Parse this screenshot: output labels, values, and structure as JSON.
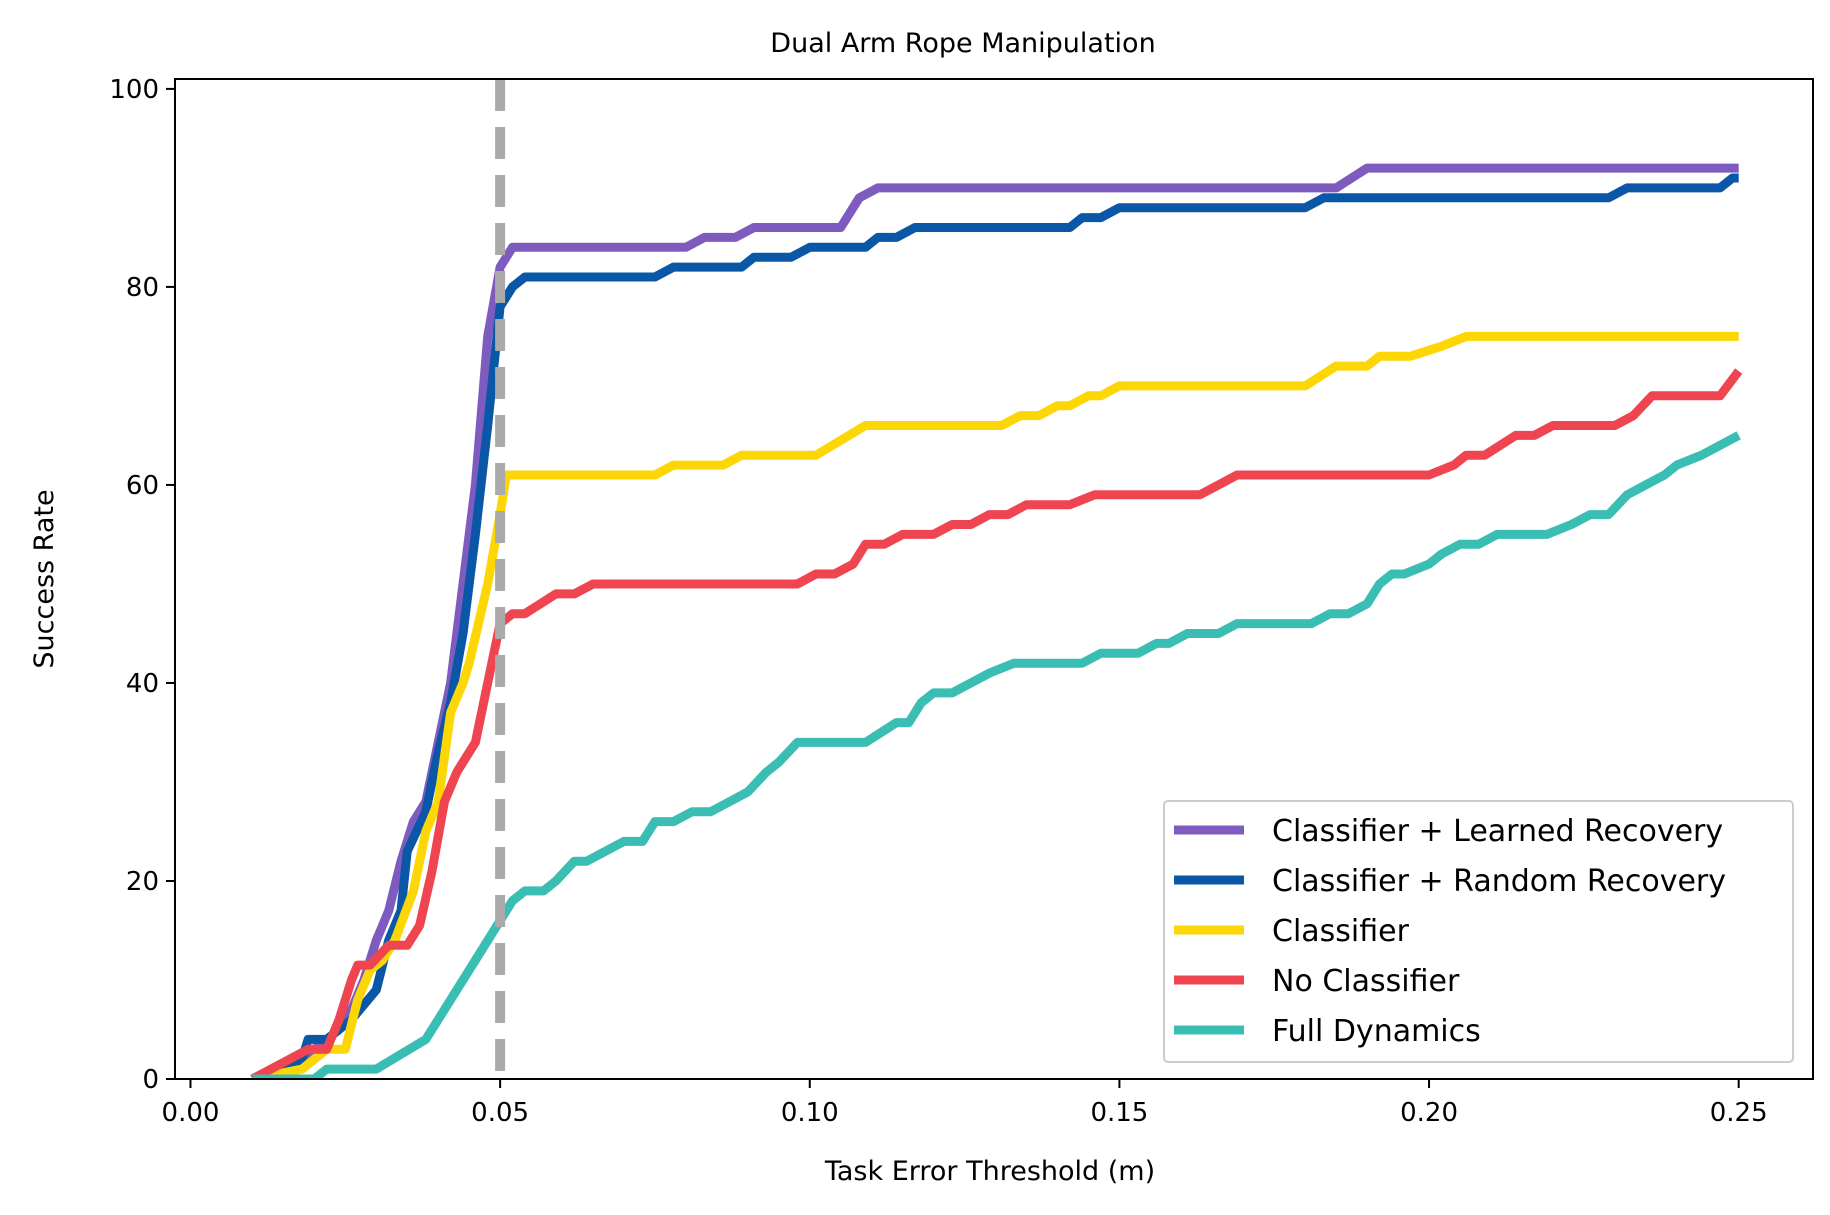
{
  "chart_data": {
    "type": "line",
    "title": "Dual Arm Rope Manipulation",
    "xlabel": "Task Error Threshold (m)",
    "ylabel": "Success Rate",
    "xlim": [
      -0.0025,
      0.262
    ],
    "ylim": [
      0,
      101
    ],
    "xticks": [
      0.0,
      0.05,
      0.1,
      0.15,
      0.2,
      0.25
    ],
    "xtick_labels": [
      "0.00",
      "0.05",
      "0.10",
      "0.15",
      "0.20",
      "0.25"
    ],
    "yticks": [
      0,
      20,
      40,
      60,
      80,
      100
    ],
    "ytick_labels": [
      "0",
      "20",
      "40",
      "60",
      "80",
      "100"
    ],
    "grid": false,
    "legend_position": "lower-right",
    "reference_line": {
      "x": 0.05,
      "color": "#aaaaaa",
      "style": "dashed"
    },
    "series": [
      {
        "name": "Classifier + Learned Recovery",
        "color": "#7e5cbf",
        "points": [
          [
            0.01,
            0
          ],
          [
            0.015,
            1
          ],
          [
            0.018,
            2
          ],
          [
            0.02,
            3
          ],
          [
            0.022,
            4
          ],
          [
            0.024,
            5
          ],
          [
            0.026,
            7
          ],
          [
            0.028,
            10
          ],
          [
            0.03,
            14
          ],
          [
            0.032,
            17
          ],
          [
            0.034,
            22
          ],
          [
            0.036,
            26
          ],
          [
            0.038,
            28
          ],
          [
            0.04,
            34
          ],
          [
            0.042,
            40
          ],
          [
            0.044,
            50
          ],
          [
            0.046,
            60
          ],
          [
            0.048,
            75
          ],
          [
            0.05,
            82
          ],
          [
            0.052,
            84
          ],
          [
            0.08,
            84
          ],
          [
            0.083,
            85
          ],
          [
            0.088,
            85
          ],
          [
            0.091,
            86
          ],
          [
            0.105,
            86
          ],
          [
            0.108,
            89
          ],
          [
            0.111,
            90
          ],
          [
            0.185,
            90
          ],
          [
            0.19,
            92
          ],
          [
            0.25,
            92
          ]
        ]
      },
      {
        "name": "Classifier + Random Recovery",
        "color": "#0a57a8",
        "points": [
          [
            0.01,
            0
          ],
          [
            0.016,
            1
          ],
          [
            0.018,
            2
          ],
          [
            0.019,
            4
          ],
          [
            0.022,
            4
          ],
          [
            0.026,
            6
          ],
          [
            0.03,
            9
          ],
          [
            0.032,
            14
          ],
          [
            0.034,
            17
          ],
          [
            0.035,
            23
          ],
          [
            0.038,
            27
          ],
          [
            0.04,
            33
          ],
          [
            0.042,
            38
          ],
          [
            0.044,
            45
          ],
          [
            0.046,
            55
          ],
          [
            0.048,
            66
          ],
          [
            0.05,
            78
          ],
          [
            0.052,
            80
          ],
          [
            0.054,
            81
          ],
          [
            0.075,
            81
          ],
          [
            0.078,
            82
          ],
          [
            0.089,
            82
          ],
          [
            0.091,
            83
          ],
          [
            0.097,
            83
          ],
          [
            0.1,
            84
          ],
          [
            0.109,
            84
          ],
          [
            0.111,
            85
          ],
          [
            0.114,
            85
          ],
          [
            0.117,
            86
          ],
          [
            0.142,
            86
          ],
          [
            0.144,
            87
          ],
          [
            0.147,
            87
          ],
          [
            0.15,
            88
          ],
          [
            0.18,
            88
          ],
          [
            0.183,
            89
          ],
          [
            0.229,
            89
          ],
          [
            0.232,
            90
          ],
          [
            0.247,
            90
          ],
          [
            0.249,
            91
          ],
          [
            0.25,
            91
          ]
        ]
      },
      {
        "name": "Classifier",
        "color": "#fcd605",
        "points": [
          [
            0.01,
            0
          ],
          [
            0.018,
            1
          ],
          [
            0.02,
            2
          ],
          [
            0.022,
            3
          ],
          [
            0.025,
            3
          ],
          [
            0.027,
            8
          ],
          [
            0.029,
            11
          ],
          [
            0.031,
            12
          ],
          [
            0.033,
            14
          ],
          [
            0.036,
            19
          ],
          [
            0.038,
            25
          ],
          [
            0.04,
            28
          ],
          [
            0.042,
            37
          ],
          [
            0.044,
            40
          ],
          [
            0.045,
            42
          ],
          [
            0.048,
            50
          ],
          [
            0.05,
            57
          ],
          [
            0.051,
            61
          ],
          [
            0.075,
            61
          ],
          [
            0.078,
            62
          ],
          [
            0.086,
            62
          ],
          [
            0.089,
            63
          ],
          [
            0.101,
            63
          ],
          [
            0.109,
            66
          ],
          [
            0.131,
            66
          ],
          [
            0.134,
            67
          ],
          [
            0.137,
            67
          ],
          [
            0.14,
            68
          ],
          [
            0.142,
            68
          ],
          [
            0.145,
            69
          ],
          [
            0.147,
            69
          ],
          [
            0.15,
            70
          ],
          [
            0.18,
            70
          ],
          [
            0.185,
            72
          ],
          [
            0.19,
            72
          ],
          [
            0.192,
            73
          ],
          [
            0.197,
            73
          ],
          [
            0.202,
            74
          ],
          [
            0.206,
            75
          ],
          [
            0.25,
            75
          ]
        ]
      },
      {
        "name": "No Classifier",
        "color": "#ef4550",
        "points": [
          [
            0.01,
            0
          ],
          [
            0.016,
            2
          ],
          [
            0.019,
            3
          ],
          [
            0.022,
            3
          ],
          [
            0.024,
            6
          ],
          [
            0.026,
            10
          ],
          [
            0.027,
            11.5
          ],
          [
            0.029,
            11.5
          ],
          [
            0.032,
            13.5
          ],
          [
            0.035,
            13.5
          ],
          [
            0.037,
            15.5
          ],
          [
            0.039,
            21
          ],
          [
            0.041,
            28
          ],
          [
            0.043,
            31
          ],
          [
            0.046,
            34
          ],
          [
            0.048,
            40
          ],
          [
            0.05,
            46
          ],
          [
            0.052,
            47
          ],
          [
            0.054,
            47
          ],
          [
            0.059,
            49
          ],
          [
            0.062,
            49
          ],
          [
            0.065,
            50
          ],
          [
            0.089,
            50
          ],
          [
            0.098,
            50
          ],
          [
            0.101,
            51
          ],
          [
            0.104,
            51
          ],
          [
            0.107,
            52
          ],
          [
            0.109,
            54
          ],
          [
            0.112,
            54
          ],
          [
            0.115,
            55
          ],
          [
            0.12,
            55
          ],
          [
            0.123,
            56
          ],
          [
            0.126,
            56
          ],
          [
            0.129,
            57
          ],
          [
            0.132,
            57
          ],
          [
            0.135,
            58
          ],
          [
            0.142,
            58
          ],
          [
            0.146,
            59
          ],
          [
            0.163,
            59
          ],
          [
            0.169,
            61
          ],
          [
            0.2,
            61
          ],
          [
            0.204,
            62
          ],
          [
            0.206,
            63
          ],
          [
            0.209,
            63
          ],
          [
            0.214,
            65
          ],
          [
            0.217,
            65
          ],
          [
            0.22,
            66
          ],
          [
            0.23,
            66
          ],
          [
            0.233,
            67
          ],
          [
            0.236,
            69
          ],
          [
            0.247,
            69
          ],
          [
            0.25,
            71.5
          ]
        ]
      },
      {
        "name": "Full Dynamics",
        "color": "#3abdb2",
        "points": [
          [
            0.01,
            0
          ],
          [
            0.02,
            0
          ],
          [
            0.022,
            1
          ],
          [
            0.03,
            1
          ],
          [
            0.038,
            4
          ],
          [
            0.04,
            6
          ],
          [
            0.043,
            9
          ],
          [
            0.046,
            12
          ],
          [
            0.05,
            16
          ],
          [
            0.052,
            18
          ],
          [
            0.054,
            19
          ],
          [
            0.057,
            19
          ],
          [
            0.059,
            20
          ],
          [
            0.062,
            22
          ],
          [
            0.064,
            22
          ],
          [
            0.07,
            24
          ],
          [
            0.073,
            24
          ],
          [
            0.075,
            26
          ],
          [
            0.078,
            26
          ],
          [
            0.081,
            27
          ],
          [
            0.084,
            27
          ],
          [
            0.087,
            28
          ],
          [
            0.09,
            29
          ],
          [
            0.093,
            31
          ],
          [
            0.095,
            32
          ],
          [
            0.098,
            34
          ],
          [
            0.109,
            34
          ],
          [
            0.114,
            36
          ],
          [
            0.116,
            36
          ],
          [
            0.118,
            38
          ],
          [
            0.12,
            39
          ],
          [
            0.123,
            39
          ],
          [
            0.126,
            40
          ],
          [
            0.129,
            41
          ],
          [
            0.133,
            42
          ],
          [
            0.144,
            42
          ],
          [
            0.147,
            43
          ],
          [
            0.153,
            43
          ],
          [
            0.156,
            44
          ],
          [
            0.158,
            44
          ],
          [
            0.161,
            45
          ],
          [
            0.166,
            45
          ],
          [
            0.169,
            46
          ],
          [
            0.181,
            46
          ],
          [
            0.184,
            47
          ],
          [
            0.187,
            47
          ],
          [
            0.19,
            48
          ],
          [
            0.192,
            50
          ],
          [
            0.194,
            51
          ],
          [
            0.196,
            51
          ],
          [
            0.2,
            52
          ],
          [
            0.202,
            53
          ],
          [
            0.205,
            54
          ],
          [
            0.208,
            54
          ],
          [
            0.211,
            55
          ],
          [
            0.219,
            55
          ],
          [
            0.223,
            56
          ],
          [
            0.226,
            57
          ],
          [
            0.229,
            57
          ],
          [
            0.232,
            59
          ],
          [
            0.235,
            60
          ],
          [
            0.238,
            61
          ],
          [
            0.24,
            62
          ],
          [
            0.244,
            63
          ],
          [
            0.25,
            65
          ]
        ]
      }
    ]
  }
}
